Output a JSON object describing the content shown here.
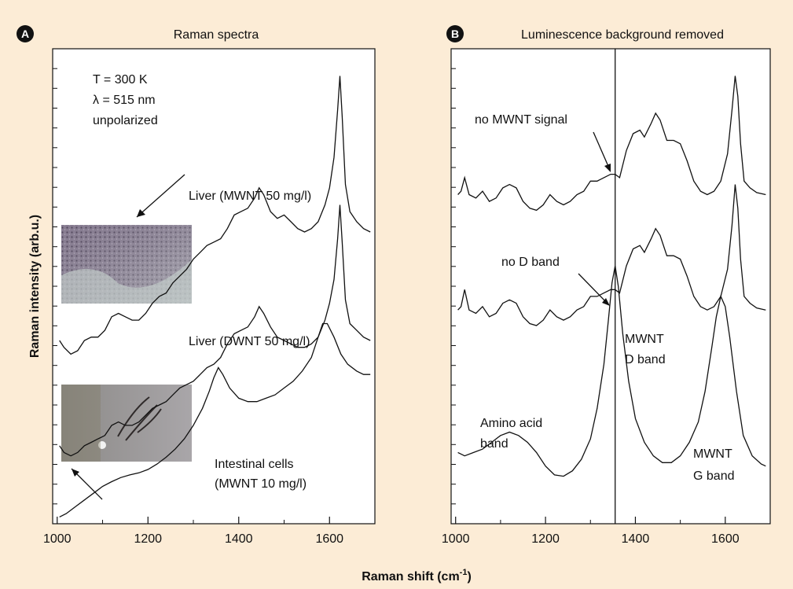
{
  "figure": {
    "xlabel_main": "Raman shift (cm",
    "xlabel_sup": "-1",
    "xlabel_end": ")",
    "ylabel": "Raman intensity (arb.u.)"
  },
  "chart_data": [
    {
      "type": "line",
      "panel": "A",
      "title": "Raman spectra",
      "xlim": [
        990,
        1700
      ],
      "x_ticks": [
        1000,
        1200,
        1400,
        1600
      ],
      "y_ticks_labeled": false,
      "grid": false,
      "legend": "none",
      "annotations": [
        "T = 300 K",
        "λ = 515 nm",
        "unpolarized"
      ],
      "series": [
        {
          "name": "Liver (MWNT 50 mg/l)",
          "x": [
            1005,
            1015,
            1030,
            1045,
            1060,
            1075,
            1090,
            1105,
            1120,
            1135,
            1150,
            1165,
            1180,
            1195,
            1210,
            1225,
            1240,
            1255,
            1270,
            1285,
            1300,
            1315,
            1330,
            1345,
            1360,
            1375,
            1390,
            1405,
            1420,
            1435,
            1445,
            1455,
            1470,
            1485,
            1500,
            1515,
            1530,
            1545,
            1560,
            1575,
            1590,
            1600,
            1610,
            1618,
            1623,
            1628,
            1635,
            1645,
            1660,
            1675,
            1690
          ],
          "y": [
            2.7,
            2.6,
            2.5,
            2.55,
            2.7,
            2.75,
            2.75,
            2.85,
            3.05,
            3.1,
            3.05,
            3.0,
            3.0,
            3.1,
            3.25,
            3.35,
            3.4,
            3.55,
            3.65,
            3.75,
            3.9,
            4.0,
            4.1,
            4.15,
            4.2,
            4.35,
            4.55,
            4.6,
            4.65,
            4.8,
            4.95,
            4.85,
            4.6,
            4.5,
            4.55,
            4.45,
            4.35,
            4.3,
            4.35,
            4.45,
            4.7,
            4.95,
            5.4,
            6.1,
            6.6,
            6.0,
            5.0,
            4.6,
            4.45,
            4.35,
            4.3
          ]
        },
        {
          "name": "Liver (DWNT 50 mg/l)",
          "x": [
            1005,
            1015,
            1030,
            1045,
            1060,
            1075,
            1090,
            1105,
            1120,
            1135,
            1150,
            1165,
            1180,
            1195,
            1210,
            1225,
            1240,
            1255,
            1270,
            1285,
            1300,
            1315,
            1330,
            1345,
            1360,
            1375,
            1390,
            1405,
            1420,
            1435,
            1445,
            1455,
            1470,
            1485,
            1500,
            1515,
            1530,
            1545,
            1560,
            1575,
            1590,
            1600,
            1610,
            1618,
            1623,
            1628,
            1635,
            1645,
            1660,
            1675,
            1690
          ],
          "y": [
            1.15,
            1.05,
            1.0,
            1.05,
            1.15,
            1.2,
            1.25,
            1.3,
            1.45,
            1.5,
            1.45,
            1.45,
            1.5,
            1.6,
            1.7,
            1.75,
            1.8,
            1.9,
            2.0,
            2.05,
            2.1,
            2.2,
            2.3,
            2.35,
            2.45,
            2.65,
            2.8,
            2.85,
            2.9,
            3.05,
            3.2,
            3.1,
            2.9,
            2.75,
            2.7,
            2.65,
            2.6,
            2.6,
            2.65,
            2.75,
            3.0,
            3.25,
            3.6,
            4.2,
            4.7,
            4.15,
            3.3,
            2.95,
            2.85,
            2.75,
            2.7
          ]
        },
        {
          "name": "Intestinal cells (MWNT 10 mg/l)",
          "x": [
            1005,
            1020,
            1040,
            1060,
            1080,
            1100,
            1120,
            1140,
            1160,
            1180,
            1200,
            1220,
            1240,
            1260,
            1280,
            1300,
            1320,
            1335,
            1345,
            1355,
            1365,
            1380,
            1400,
            1420,
            1440,
            1460,
            1480,
            1500,
            1520,
            1540,
            1560,
            1575,
            1585,
            1595,
            1610,
            1625,
            1640,
            1660,
            1675,
            1690
          ],
          "y": [
            0.1,
            0.15,
            0.25,
            0.35,
            0.45,
            0.55,
            0.62,
            0.68,
            0.72,
            0.75,
            0.8,
            0.88,
            0.98,
            1.1,
            1.25,
            1.45,
            1.7,
            1.95,
            2.15,
            2.3,
            2.2,
            2.0,
            1.85,
            1.8,
            1.8,
            1.85,
            1.9,
            2.0,
            2.1,
            2.25,
            2.45,
            2.75,
            2.95,
            2.95,
            2.75,
            2.5,
            2.35,
            2.25,
            2.2,
            2.2
          ]
        }
      ],
      "curve_labels": [
        "Liver (MWNT 50 mg/l)",
        "Liver (DWNT 50 mg/l)",
        "Intestinal cells",
        "(MWNT 10 mg/l)"
      ]
    },
    {
      "type": "line",
      "panel": "B",
      "title": "Luminescence background removed",
      "xlim": [
        990,
        1700
      ],
      "x_ticks": [
        1000,
        1200,
        1400,
        1600
      ],
      "y_ticks_labeled": false,
      "grid": false,
      "legend": "none",
      "vertical_line_x": 1355,
      "series": [
        {
          "name": "top",
          "x": [
            1005,
            1012,
            1020,
            1030,
            1045,
            1060,
            1075,
            1090,
            1105,
            1120,
            1135,
            1150,
            1165,
            1180,
            1195,
            1210,
            1225,
            1240,
            1255,
            1270,
            1285,
            1300,
            1315,
            1330,
            1345,
            1355,
            1365,
            1380,
            1395,
            1410,
            1420,
            1435,
            1445,
            1455,
            1470,
            1485,
            1500,
            1515,
            1530,
            1545,
            1560,
            1575,
            1590,
            1605,
            1615,
            1622,
            1628,
            1634,
            1642,
            1655,
            1670,
            1690
          ],
          "y": [
            4.85,
            4.9,
            5.1,
            4.85,
            4.8,
            4.9,
            4.75,
            4.8,
            4.95,
            5.0,
            4.95,
            4.75,
            4.65,
            4.62,
            4.7,
            4.85,
            4.75,
            4.7,
            4.75,
            4.85,
            4.9,
            5.05,
            5.05,
            5.1,
            5.15,
            5.15,
            5.1,
            5.5,
            5.75,
            5.8,
            5.7,
            5.9,
            6.05,
            5.95,
            5.65,
            5.65,
            5.6,
            5.35,
            5.05,
            4.9,
            4.85,
            4.9,
            5.05,
            5.45,
            6.1,
            6.6,
            6.3,
            5.6,
            5.05,
            4.95,
            4.88,
            4.85
          ]
        },
        {
          "name": "middle",
          "x": [
            1005,
            1012,
            1020,
            1030,
            1045,
            1060,
            1075,
            1090,
            1105,
            1120,
            1135,
            1150,
            1165,
            1180,
            1195,
            1210,
            1225,
            1240,
            1255,
            1270,
            1285,
            1300,
            1315,
            1330,
            1345,
            1355,
            1365,
            1380,
            1395,
            1410,
            1420,
            1435,
            1445,
            1455,
            1470,
            1485,
            1500,
            1515,
            1530,
            1545,
            1560,
            1575,
            1590,
            1605,
            1615,
            1622,
            1628,
            1634,
            1642,
            1655,
            1670,
            1690
          ],
          "y": [
            3.15,
            3.2,
            3.45,
            3.15,
            3.1,
            3.2,
            3.05,
            3.1,
            3.25,
            3.3,
            3.25,
            3.05,
            2.95,
            2.92,
            3.0,
            3.15,
            3.05,
            3.0,
            3.05,
            3.15,
            3.2,
            3.35,
            3.35,
            3.4,
            3.45,
            3.45,
            3.4,
            3.8,
            4.05,
            4.1,
            4.0,
            4.2,
            4.35,
            4.25,
            3.95,
            3.95,
            3.9,
            3.65,
            3.35,
            3.2,
            3.15,
            3.2,
            3.35,
            3.75,
            4.4,
            5.0,
            4.65,
            3.9,
            3.35,
            3.25,
            3.18,
            3.15
          ]
        },
        {
          "name": "bottom",
          "x": [
            1005,
            1020,
            1040,
            1060,
            1080,
            1100,
            1120,
            1140,
            1160,
            1180,
            1200,
            1220,
            1240,
            1260,
            1280,
            1300,
            1315,
            1330,
            1340,
            1348,
            1355,
            1362,
            1372,
            1385,
            1400,
            1420,
            1440,
            1460,
            1480,
            1500,
            1520,
            1540,
            1555,
            1570,
            1580,
            1590,
            1600,
            1610,
            1625,
            1640,
            1660,
            1680,
            1690
          ],
          "y": [
            1.05,
            1.0,
            1.05,
            1.1,
            1.2,
            1.3,
            1.35,
            1.3,
            1.2,
            1.05,
            0.85,
            0.72,
            0.7,
            0.78,
            0.95,
            1.25,
            1.7,
            2.35,
            3.0,
            3.55,
            3.8,
            3.5,
            2.8,
            2.1,
            1.55,
            1.2,
            1.0,
            0.9,
            0.9,
            1.0,
            1.2,
            1.5,
            1.95,
            2.6,
            3.05,
            3.35,
            3.2,
            2.75,
            1.95,
            1.3,
            1.0,
            0.88,
            0.85
          ]
        }
      ],
      "annotations": [
        "no MWNT signal",
        "no D band",
        "MWNT",
        "D band",
        "Amino acid",
        "band",
        "MWNT",
        "G band"
      ]
    }
  ]
}
